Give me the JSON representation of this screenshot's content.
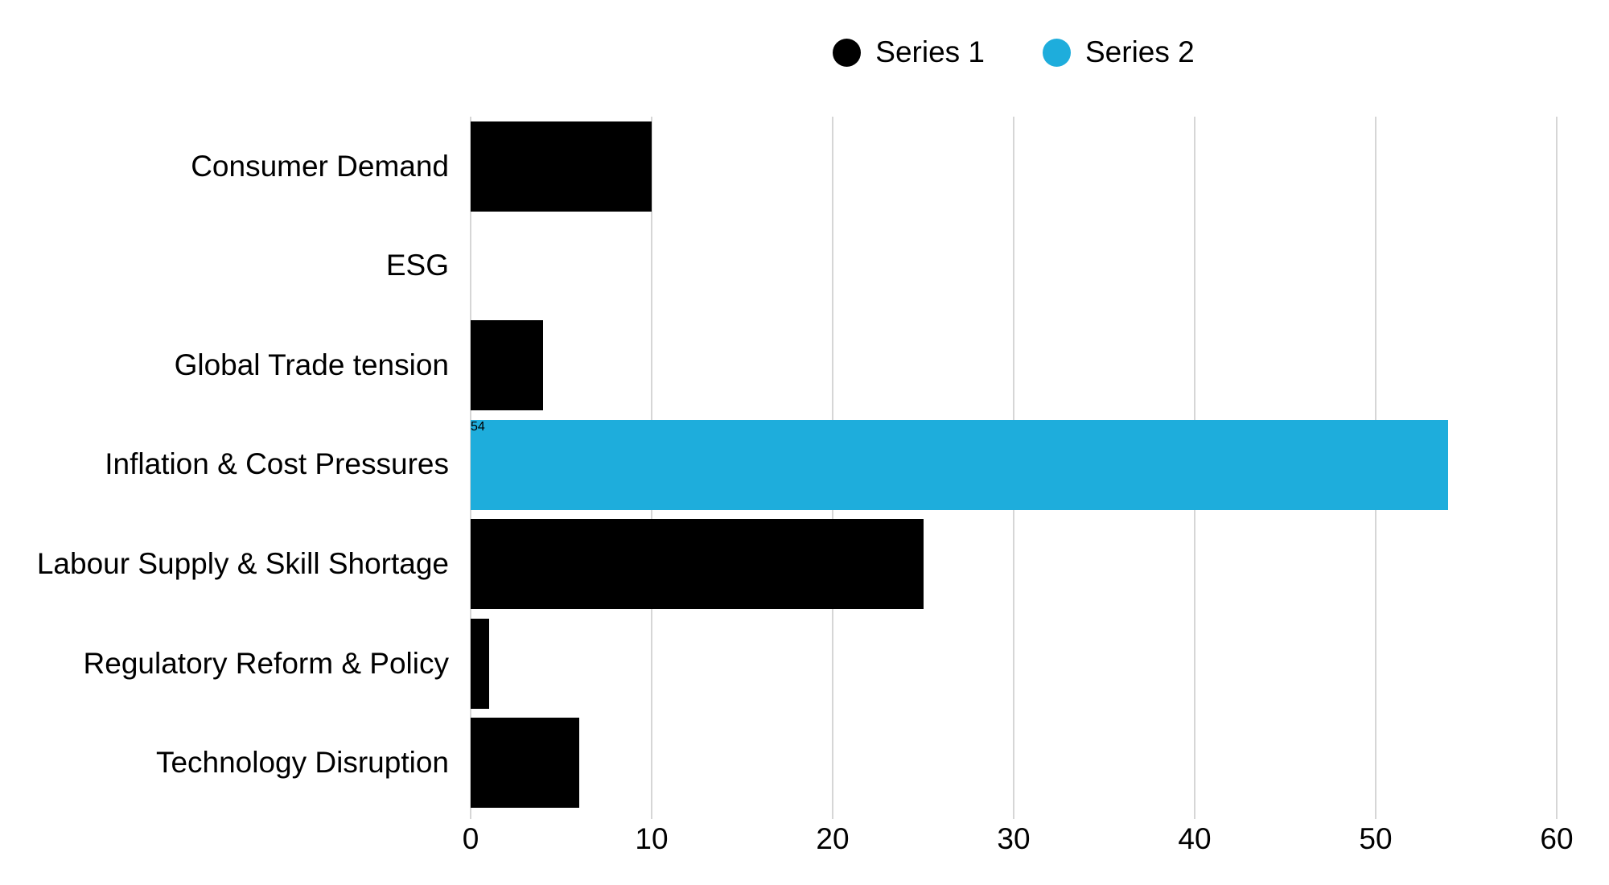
{
  "chart_data": {
    "type": "bar",
    "orientation": "horizontal",
    "title": "",
    "xlabel": "",
    "ylabel": "",
    "categories": [
      "Consumer Demand",
      "ESG",
      "Global Trade tension",
      "Inflation & Cost Pressures",
      "Labour Supply & Skill Shortage",
      "Regulatory Reform & Policy",
      "Technology Disruption"
    ],
    "series": [
      {
        "name": "Series 1",
        "color": "#000000",
        "values": [
          10,
          0,
          4,
          0,
          25,
          1,
          6
        ]
      },
      {
        "name": "Series 2",
        "color": "#1EADDC",
        "values": [
          0,
          0,
          0,
          54,
          0,
          0,
          0
        ]
      }
    ],
    "xlim": [
      0,
      60
    ],
    "xticks": [
      0,
      10,
      20,
      30,
      40,
      50,
      60
    ],
    "grid": "vertical-gridlines-only",
    "gridline_color": "#d6d6d6",
    "legend_position": "top-center",
    "background_color": "#ffffff",
    "text_color": "#000000"
  }
}
